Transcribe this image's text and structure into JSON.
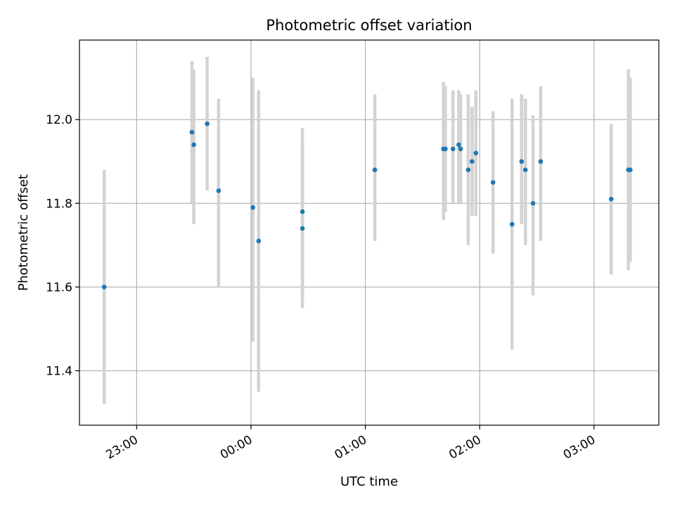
{
  "chart_data": {
    "type": "scatter",
    "title": "Photometric offset variation",
    "xlabel": "UTC time",
    "ylabel": "Photometric offset",
    "grid": true,
    "error_bars": true,
    "colors": {
      "points": "#1f77b4",
      "error_bars": "#d3d3d3",
      "grid": "#b0b0b0"
    },
    "xlim": [
      "22:30",
      "03:34"
    ],
    "ylim": [
      11.27,
      12.19
    ],
    "x_ticks": [
      "23:00",
      "00:00",
      "01:00",
      "02:00",
      "03:00"
    ],
    "y_ticks": [
      "11.4",
      "11.6",
      "11.8",
      "12.0"
    ],
    "points": [
      {
        "time": "22:43",
        "y": 11.6,
        "lo": 11.32,
        "hi": 11.88
      },
      {
        "time": "23:29",
        "y": 11.97,
        "lo": 11.8,
        "hi": 12.14
      },
      {
        "time": "23:30",
        "y": 11.94,
        "lo": 11.75,
        "hi": 12.12
      },
      {
        "time": "23:37",
        "y": 11.99,
        "lo": 11.83,
        "hi": 12.15
      },
      {
        "time": "23:43",
        "y": 11.83,
        "lo": 11.6,
        "hi": 12.05
      },
      {
        "time": "00:01",
        "y": 11.79,
        "lo": 11.47,
        "hi": 12.1
      },
      {
        "time": "00:04",
        "y": 11.71,
        "lo": 11.35,
        "hi": 12.07
      },
      {
        "time": "00:27",
        "y": 11.74,
        "lo": 11.55,
        "hi": 11.94
      },
      {
        "time": "00:27",
        "y": 11.78,
        "lo": 11.58,
        "hi": 11.98
      },
      {
        "time": "01:05",
        "y": 11.88,
        "lo": 11.71,
        "hi": 12.06
      },
      {
        "time": "01:41",
        "y": 11.93,
        "lo": 11.76,
        "hi": 12.09
      },
      {
        "time": "01:42",
        "y": 11.93,
        "lo": 11.78,
        "hi": 12.08
      },
      {
        "time": "01:46",
        "y": 11.93,
        "lo": 11.8,
        "hi": 12.07
      },
      {
        "time": "01:49",
        "y": 11.94,
        "lo": 11.8,
        "hi": 12.07
      },
      {
        "time": "01:50",
        "y": 11.93,
        "lo": 11.8,
        "hi": 12.06
      },
      {
        "time": "01:54",
        "y": 11.88,
        "lo": 11.7,
        "hi": 12.06
      },
      {
        "time": "01:56",
        "y": 11.9,
        "lo": 11.77,
        "hi": 12.03
      },
      {
        "time": "01:58",
        "y": 11.92,
        "lo": 11.77,
        "hi": 12.07
      },
      {
        "time": "02:07",
        "y": 11.85,
        "lo": 11.68,
        "hi": 12.02
      },
      {
        "time": "02:17",
        "y": 11.75,
        "lo": 11.45,
        "hi": 12.05
      },
      {
        "time": "02:22",
        "y": 11.9,
        "lo": 11.75,
        "hi": 12.06
      },
      {
        "time": "02:24",
        "y": 11.88,
        "lo": 11.7,
        "hi": 12.05
      },
      {
        "time": "02:28",
        "y": 11.8,
        "lo": 11.58,
        "hi": 12.01
      },
      {
        "time": "02:32",
        "y": 11.9,
        "lo": 11.71,
        "hi": 12.08
      },
      {
        "time": "03:09",
        "y": 11.81,
        "lo": 11.63,
        "hi": 11.99
      },
      {
        "time": "03:18",
        "y": 11.88,
        "lo": 11.64,
        "hi": 12.12
      },
      {
        "time": "03:19",
        "y": 11.88,
        "lo": 11.66,
        "hi": 12.1
      }
    ]
  }
}
